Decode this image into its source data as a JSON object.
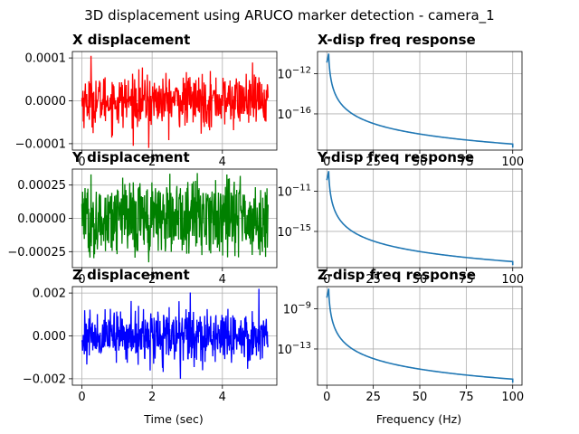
{
  "figure": {
    "suptitle": "3D displacement using ARUCO marker detection - camera_1",
    "time_label": "Time (sec)",
    "freq_label": "Frequency (Hz)"
  },
  "chart_data": [
    {
      "type": "line",
      "title": "X displacement",
      "xlabel": "",
      "xlim": [
        -0.27,
        5.55
      ],
      "ylim": [
        -0.000115,
        0.000115
      ],
      "x_ticks": [
        "0",
        "2",
        "4"
      ],
      "y_ticks": [
        "0.0001",
        "0.0000",
        "-0.0001"
      ],
      "grid": true,
      "series": [
        {
          "color": "#ff0000",
          "x_range": [
            0,
            5.3
          ],
          "samples": 530,
          "amplitude": 3e-05,
          "peak_max": 0.000105,
          "peak_min": -0.00011
        }
      ]
    },
    {
      "type": "line",
      "title": "X-disp freq response",
      "xlabel": "",
      "xlim": [
        -5,
        105
      ],
      "log_y": true,
      "x_ticks": [
        "0",
        "25",
        "50",
        "75",
        "100"
      ],
      "y_ticks": [
        "10^-12",
        "10^-16"
      ],
      "grid": true,
      "series": [
        {
          "color": "#1f77b4",
          "peak_hz": 1,
          "peak_value": "1e-10",
          "end_value": "1e-19"
        }
      ]
    },
    {
      "type": "line",
      "title": "Y displacement",
      "xlabel": "",
      "xlim": [
        -0.27,
        5.55
      ],
      "ylim": [
        -0.00037,
        0.00037
      ],
      "x_ticks": [
        "0",
        "2",
        "4"
      ],
      "y_ticks": [
        "0.00025",
        "0.00000",
        "-0.00025"
      ],
      "grid": true,
      "series": [
        {
          "color": "#008000",
          "x_range": [
            0,
            5.3
          ],
          "samples": 530,
          "amplitude": 0.00022,
          "peak_max": 0.00033,
          "peak_min": -0.00033
        }
      ]
    },
    {
      "type": "line",
      "title": "Y-disp freq response",
      "xlabel": "",
      "xlim": [
        -5,
        105
      ],
      "log_y": true,
      "x_ticks": [
        "0",
        "25",
        "50",
        "75",
        "100"
      ],
      "y_ticks": [
        "10^-11",
        "10^-15"
      ],
      "grid": true,
      "series": [
        {
          "color": "#1f77b4",
          "peak_hz": 1,
          "peak_value": "1e-9",
          "end_value": "1e-18"
        }
      ]
    },
    {
      "type": "line",
      "title": "Z displacement",
      "xlabel": "Time (sec)",
      "xlim": [
        -0.27,
        5.55
      ],
      "ylim": [
        -0.0023,
        0.0023
      ],
      "x_ticks": [
        "0",
        "2",
        "4"
      ],
      "y_ticks": [
        "0.002",
        "0.000",
        "-0.002"
      ],
      "grid": true,
      "series": [
        {
          "color": "#0000ff",
          "x_range": [
            0,
            5.3
          ],
          "samples": 530,
          "amplitude": 0.0006,
          "peak_max": 0.0022,
          "peak_min": -0.002
        }
      ]
    },
    {
      "type": "line",
      "title": "Z-disp freq response",
      "xlabel": "Frequency (Hz)",
      "xlim": [
        -5,
        105
      ],
      "log_y": true,
      "x_ticks": [
        "0",
        "25",
        "50",
        "75",
        "100"
      ],
      "y_ticks": [
        "10^-9",
        "10^-13"
      ],
      "grid": true,
      "series": [
        {
          "color": "#1f77b4",
          "peak_hz": 1,
          "peak_value": "1e-7",
          "end_value": "1e-16"
        }
      ]
    }
  ]
}
